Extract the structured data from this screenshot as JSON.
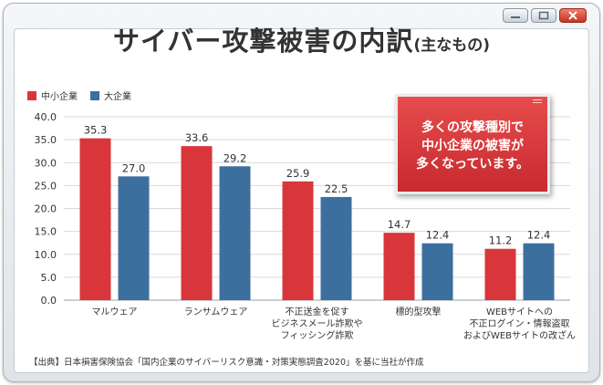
{
  "window": {
    "buttons": {
      "minimize": "minimize-icon",
      "maximize": "maximize-icon",
      "close": "close-icon"
    }
  },
  "header": {
    "title": "サイバー攻撃被害の内訳",
    "subtitle": "(主なもの)"
  },
  "callout": {
    "text": "多くの攻撃種別で\n中小企業の被害が\n多くなっています。"
  },
  "source": "【出典】日本損害保険協会「国内企業のサイバーリスク意識・対策実態調査2020」を基に当社が作成",
  "colors": {
    "sme": "#d9363b",
    "large": "#3d6f9e",
    "callout": "#d63a3e"
  },
  "chart_data": {
    "type": "bar",
    "title": "サイバー攻撃被害の内訳(主なもの)",
    "xlabel": "",
    "ylabel": "",
    "ylim": [
      0,
      40
    ],
    "yticks": [
      "40.0",
      "35.0",
      "30.0",
      "25.0",
      "20.0",
      "15.0",
      "10.0",
      "5.0",
      "0.0"
    ],
    "grid": true,
    "legend_position": "top-left",
    "categories": [
      "マルウェア",
      "ランサムウェア",
      "不正送金を促す\nビジネスメール詐欺や\nフィッシング詐欺",
      "標的型攻撃",
      "WEBサイトへの\n不正ログイン・情報盗取\nおよびWEBサイトの改ざん"
    ],
    "series": [
      {
        "name": "中小企業",
        "values": [
          35.3,
          33.6,
          25.9,
          14.7,
          11.2
        ],
        "labels": [
          "35.3",
          "33.6",
          "25.9",
          "14.7",
          "11.2"
        ]
      },
      {
        "name": "大企業",
        "values": [
          27.0,
          29.2,
          22.5,
          12.4,
          12.4
        ],
        "labels": [
          "27.0",
          "29.2",
          "22.5",
          "12.4",
          "12.4"
        ]
      }
    ]
  }
}
